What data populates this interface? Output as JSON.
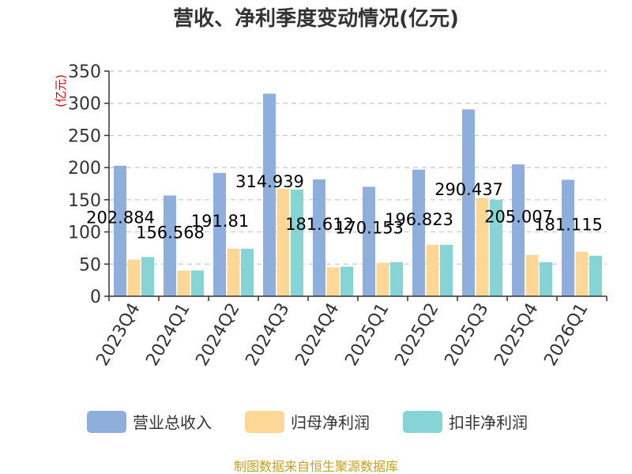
{
  "chart_data": {
    "type": "bar",
    "title": "营收、净利季度变动情况(亿元)",
    "ylabel": "(亿元)",
    "xlabel": "",
    "ylim": [
      0,
      350
    ],
    "yticks": [
      0,
      50,
      100,
      150,
      200,
      250,
      300,
      350
    ],
    "grid": true,
    "legend_position": "bottom",
    "categories": [
      "2023Q4",
      "2024Q1",
      "2024Q2",
      "2024Q3",
      "2024Q4",
      "2025Q1",
      "2025Q2",
      "2025Q3",
      "2025Q4",
      "2026Q1"
    ],
    "series": [
      {
        "name": "营业总收入",
        "color": "#8eaedc",
        "values": [
          202.884,
          156.568,
          191.81,
          314.939,
          181.612,
          170.153,
          196.823,
          290.437,
          205.007,
          181.115
        ],
        "labels": [
          "202.884",
          "156.568",
          "191.81",
          "314.939",
          "181.612",
          "170.153",
          "196.823",
          "290.437",
          "205.007",
          "181.115"
        ]
      },
      {
        "name": "归母净利润",
        "color": "#fdd795",
        "values": [
          57,
          40,
          74,
          167,
          45,
          52,
          80,
          153,
          64,
          69
        ]
      },
      {
        "name": "扣非净利润",
        "color": "#86d4d6",
        "values": [
          61,
          40,
          74,
          166,
          46,
          53,
          80,
          150,
          53,
          63
        ]
      }
    ],
    "source": "制图数据来自恒生聚源数据库"
  }
}
